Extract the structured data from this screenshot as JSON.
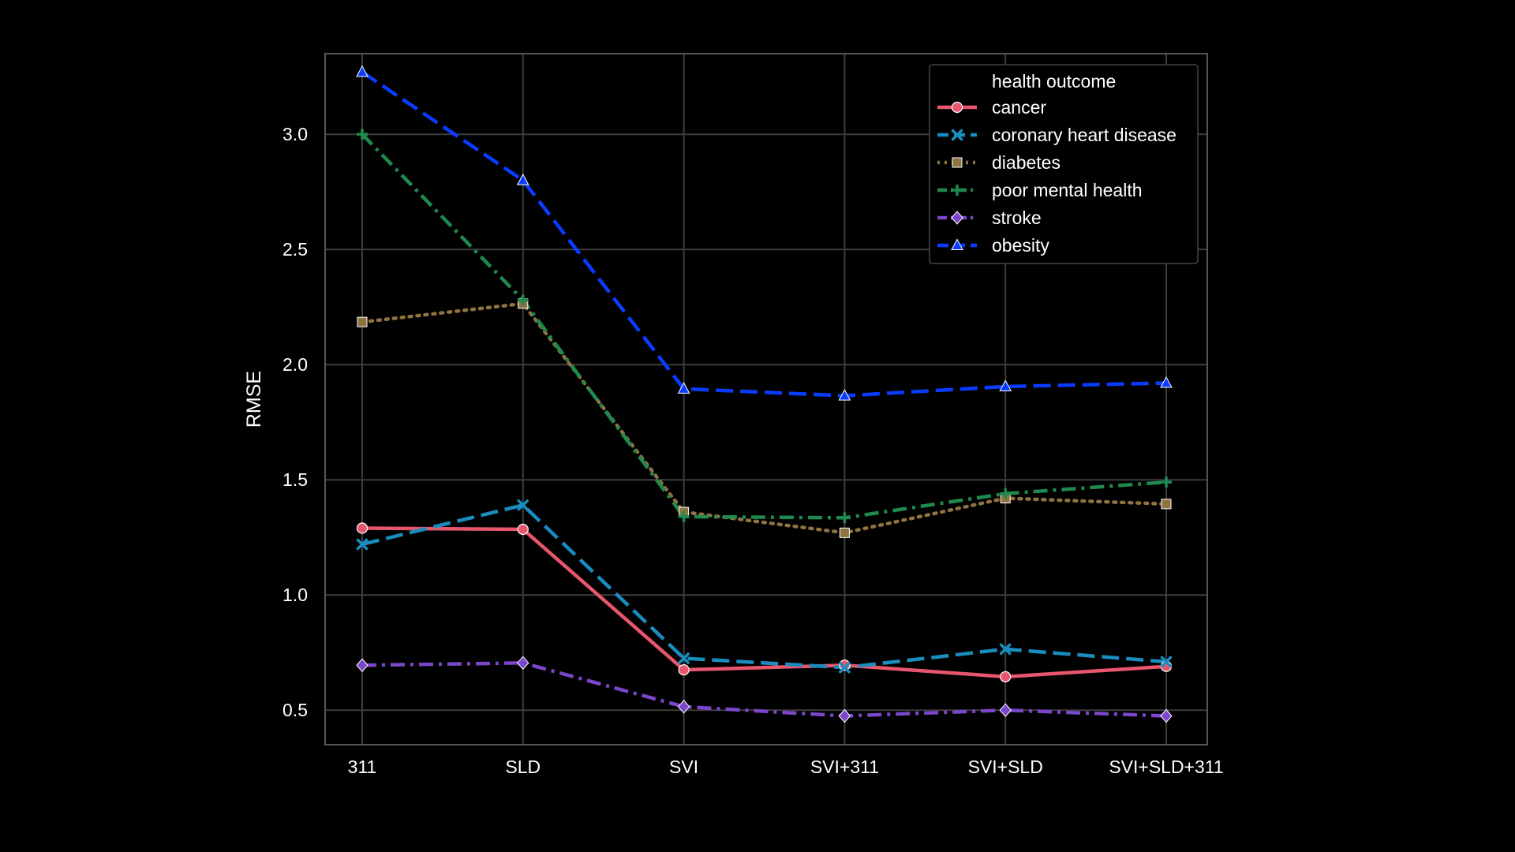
{
  "chart_data": {
    "type": "line",
    "title": "",
    "xlabel": "",
    "ylabel": "RMSE",
    "categories": [
      "311",
      "SLD",
      "SVI",
      "SVI+311",
      "SVI+SLD",
      "SVI+SLD+311"
    ],
    "ylim": [
      0.35,
      3.35
    ],
    "yticks": [
      "0.5",
      "1.0",
      "1.5",
      "2.0",
      "2.5",
      "3.0"
    ],
    "grid": true,
    "background": "#000000",
    "legend": {
      "title": "health outcome",
      "placement": "top-right"
    },
    "series": [
      {
        "name": "cancer",
        "color": "#e8566e",
        "marker": "circle",
        "dash": "solid",
        "values": [
          1.29,
          1.285,
          0.675,
          0.695,
          0.645,
          0.69
        ]
      },
      {
        "name": "coronary heart disease",
        "color": "#1a8dbf",
        "marker": "x",
        "dash": "dashed",
        "values": [
          1.22,
          1.39,
          0.725,
          0.685,
          0.765,
          0.71
        ]
      },
      {
        "name": "diabetes",
        "color": "#8f7340",
        "marker": "square",
        "dash": "dotted",
        "values": [
          2.185,
          2.265,
          1.36,
          1.27,
          1.42,
          1.395
        ]
      },
      {
        "name": "poor mental health",
        "color": "#1e8a4e",
        "marker": "plus",
        "dash": "dashdot",
        "values": [
          3.0,
          2.28,
          1.34,
          1.335,
          1.44,
          1.49
        ]
      },
      {
        "name": "stroke",
        "color": "#7b46c9",
        "marker": "diamond",
        "dash": "dashdot",
        "values": [
          0.695,
          0.705,
          0.515,
          0.475,
          0.5,
          0.475
        ]
      },
      {
        "name": "obesity",
        "color": "#0a3cff",
        "marker": "triangle",
        "dash": "dashed",
        "values": [
          3.27,
          2.8,
          1.895,
          1.865,
          1.905,
          1.92
        ]
      }
    ]
  }
}
